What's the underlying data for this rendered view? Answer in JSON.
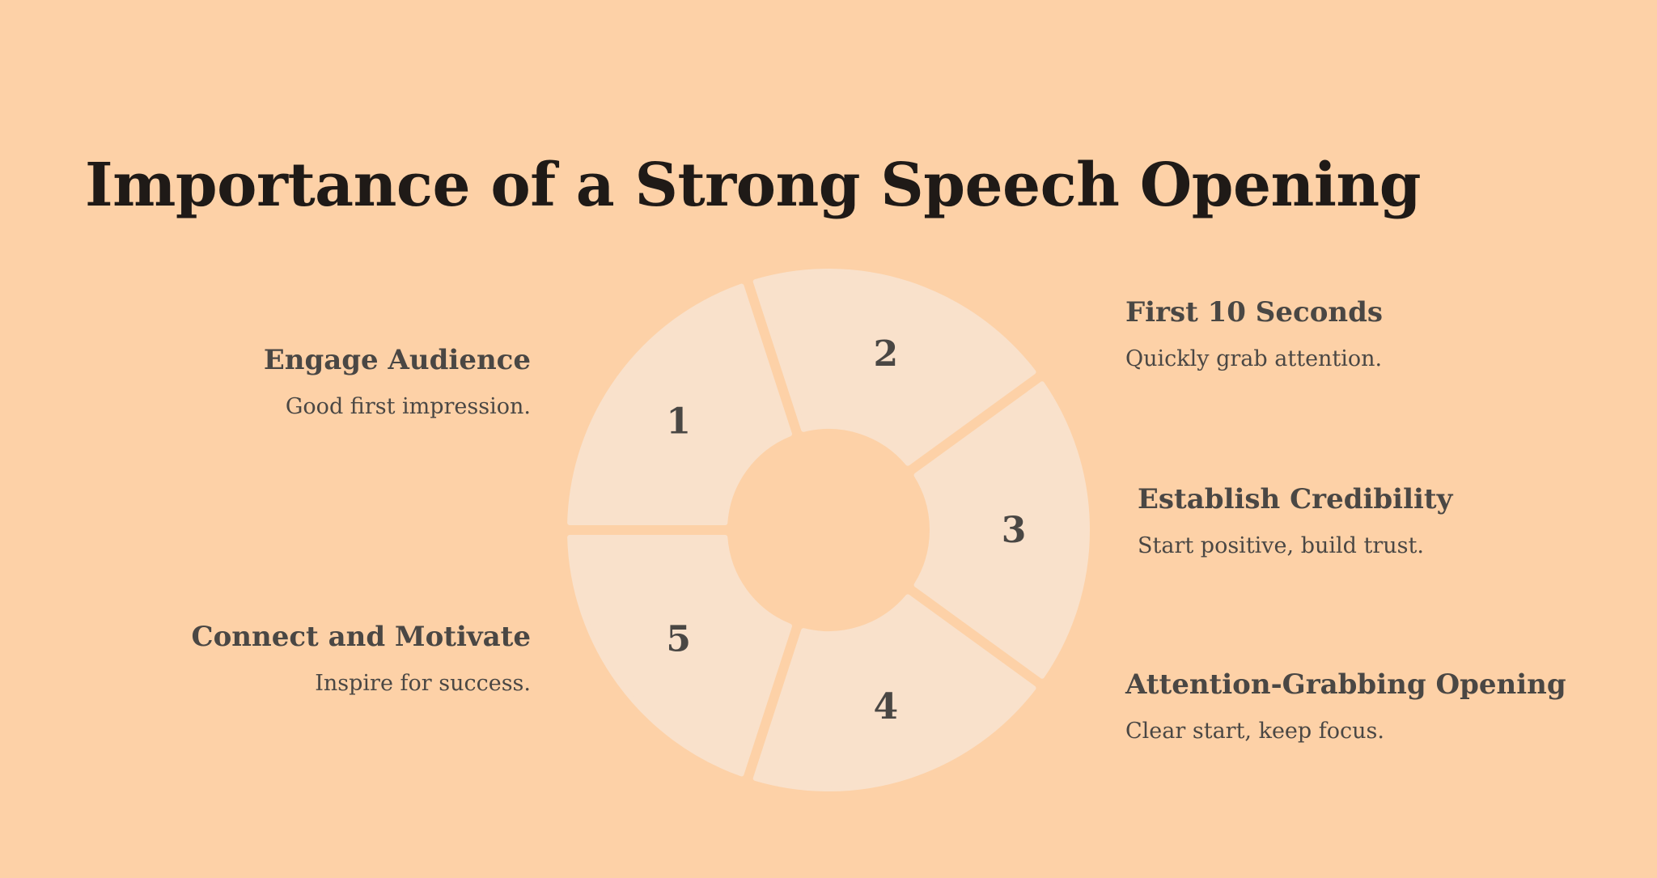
{
  "title": "Importance of a Strong Speech Opening",
  "colors": {
    "background": "#fdd1a7",
    "segment": "#f9e1cb",
    "text": "#4a4744",
    "title": "#1f1a17"
  },
  "segments": [
    {
      "number": "1",
      "heading": "Engage Audience",
      "description": "Good first impression."
    },
    {
      "number": "2",
      "heading": "First 10 Seconds",
      "description": "Quickly grab attention."
    },
    {
      "number": "3",
      "heading": "Establish Credibility",
      "description": "Start positive, build trust."
    },
    {
      "number": "4",
      "heading": "Attention-Grabbing Opening",
      "description": "Clear start, keep focus."
    },
    {
      "number": "5",
      "heading": "Connect and Motivate",
      "description": "Inspire for success."
    }
  ]
}
